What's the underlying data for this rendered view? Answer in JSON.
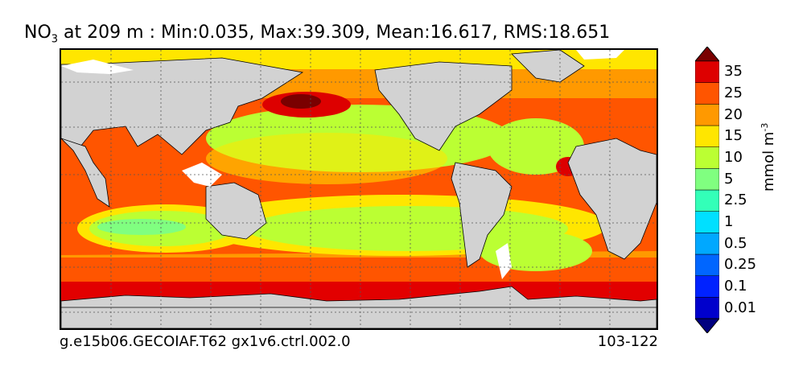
{
  "title": {
    "var_main": "NO",
    "var_sub": "3",
    "rest": " at 209 m : Min:0.035, Max:39.309, Mean:16.617, RMS:18.651"
  },
  "footer": {
    "case_name": "g.e15b06.GECOIAF.T62 gx1v6.ctrl.002.0",
    "years": "103-122"
  },
  "colorbar": {
    "unit_main": "mmol m",
    "unit_sup": "-3",
    "levels": [
      {
        "label": "0.01",
        "color": "#0000cc"
      },
      {
        "label": "0.1",
        "color": "#0022ff"
      },
      {
        "label": "0.25",
        "color": "#0066ff"
      },
      {
        "label": "0.5",
        "color": "#00a8ff"
      },
      {
        "label": "1",
        "color": "#00e0ff"
      },
      {
        "label": "2.5",
        "color": "#33ffb8"
      },
      {
        "label": "5",
        "color": "#80ff80"
      },
      {
        "label": "10",
        "color": "#bbff33"
      },
      {
        "label": "15",
        "color": "#ffe600"
      },
      {
        "label": "20",
        "color": "#ff9900"
      },
      {
        "label": "25",
        "color": "#ff5500"
      },
      {
        "label": "35",
        "color": "#dd0000"
      }
    ],
    "under_color": "#000080",
    "over_color": "#7a0000"
  },
  "map_colors": {
    "land": "#d2d2d2",
    "no_data": "#ffffff",
    "grid": "#555555"
  }
}
